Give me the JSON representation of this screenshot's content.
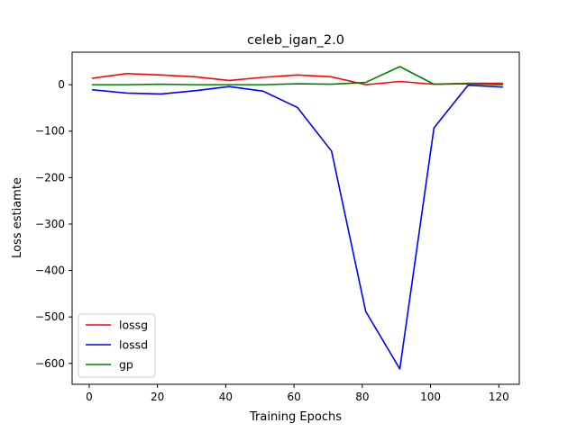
{
  "chart_data": {
    "type": "line",
    "title": "celeb_igan_2.0",
    "xlabel": "Training Epochs",
    "ylabel": "Loss estiamte",
    "xlim": [
      -5,
      126
    ],
    "ylim": [
      -645,
      70
    ],
    "xticks": [
      0,
      20,
      40,
      60,
      80,
      100,
      120
    ],
    "yticks": [
      0,
      -100,
      -200,
      -300,
      -400,
      -500,
      -600
    ],
    "xtick_labels": [
      "0",
      "20",
      "40",
      "60",
      "80",
      "100",
      "120"
    ],
    "ytick_labels": [
      "0",
      "−100",
      "−200",
      "−300",
      "−400",
      "−500",
      "−600"
    ],
    "grid": false,
    "legend_position": "lower-left",
    "x": [
      1,
      11,
      21,
      31,
      41,
      51,
      61,
      71,
      81,
      91,
      101,
      111,
      121
    ],
    "series": [
      {
        "name": "lossg",
        "color": "#ff0000",
        "values": [
          14,
          24,
          21,
          17,
          9,
          16,
          21,
          17,
          0,
          7,
          1,
          3,
          3
        ]
      },
      {
        "name": "lossd",
        "color": "#0000ff",
        "values": [
          -11,
          -18,
          -20,
          -13,
          -4,
          -14,
          -49,
          -143,
          -488,
          -612,
          -93,
          -1,
          -5
        ]
      },
      {
        "name": "gp",
        "color": "#008000",
        "values": [
          0,
          0,
          1,
          0,
          0,
          0,
          2,
          1,
          5,
          39,
          1,
          2,
          0
        ]
      }
    ]
  }
}
